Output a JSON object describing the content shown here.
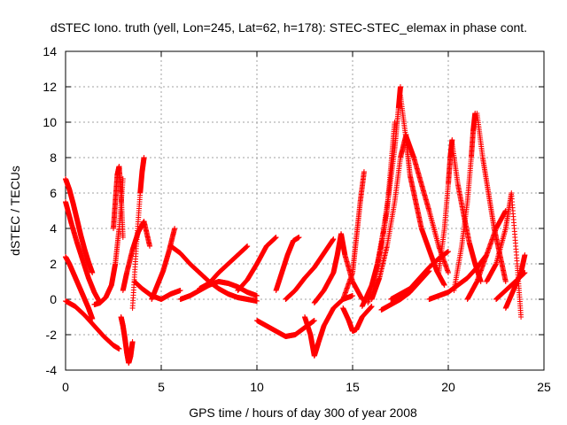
{
  "chart_data": {
    "type": "scatter",
    "title": "dSTEC Iono. truth (yell, Lon=245, Lat=62, h=178): STEC-STEC_elemax in phase cont.",
    "xlabel": "GPS time / hours of day 300 of year 2008",
    "ylabel": "dSTEC  / TECUs",
    "xlim": [
      0,
      25
    ],
    "ylim": [
      -4,
      14
    ],
    "x_ticks": [
      0,
      5,
      10,
      15,
      20,
      25
    ],
    "y_ticks": [
      -4,
      -2,
      0,
      2,
      4,
      6,
      8,
      10,
      12,
      14
    ],
    "grid": true,
    "marker": "+",
    "color": "#ff0000",
    "series": [
      {
        "x": [
          0.0,
          0.2,
          0.4,
          0.6,
          0.8,
          1.0,
          1.2,
          1.4
        ],
        "y": [
          6.8,
          6.2,
          5.4,
          4.5,
          3.6,
          2.8,
          2.1,
          1.5
        ]
      },
      {
        "x": [
          0.0,
          0.3,
          0.6,
          0.9,
          1.2,
          1.5,
          1.8
        ],
        "y": [
          5.5,
          4.3,
          3.2,
          2.2,
          1.2,
          0.4,
          -0.2
        ]
      },
      {
        "x": [
          0.0,
          0.2,
          0.4,
          0.6,
          0.8,
          1.0,
          1.2,
          1.4
        ],
        "y": [
          2.4,
          2.0,
          1.5,
          1.0,
          0.5,
          0.0,
          -0.5,
          -1.1
        ]
      },
      {
        "x": [
          0.0,
          0.5,
          1.0,
          1.5,
          2.0,
          2.5,
          2.8
        ],
        "y": [
          -0.1,
          -0.4,
          -0.9,
          -1.5,
          -2.1,
          -2.6,
          -2.8
        ]
      },
      {
        "x": [
          1.5,
          1.8,
          2.1,
          2.4,
          2.6,
          2.8,
          3.0
        ],
        "y": [
          -0.3,
          -0.2,
          0.1,
          0.8,
          2.0,
          4.0,
          6.8
        ]
      },
      {
        "x": [
          2.5,
          2.6,
          2.7,
          2.8,
          2.9,
          3.0
        ],
        "y": [
          4.0,
          5.5,
          7.0,
          7.5,
          6.0,
          3.5
        ]
      },
      {
        "x": [
          2.9,
          3.0,
          3.1,
          3.2,
          3.3,
          3.4,
          3.5
        ],
        "y": [
          -1.0,
          -1.5,
          -2.2,
          -3.0,
          -3.6,
          -3.2,
          -2.4
        ]
      },
      {
        "x": [
          3.0,
          3.2,
          3.5,
          3.8,
          4.1,
          4.4
        ],
        "y": [
          0.5,
          1.5,
          2.8,
          3.8,
          4.4,
          3.0
        ]
      },
      {
        "x": [
          3.5,
          3.7,
          3.9,
          4.0,
          4.1
        ],
        "y": [
          -0.5,
          3.0,
          6.0,
          7.2,
          8.0
        ]
      },
      {
        "x": [
          3.6,
          4.0,
          4.5,
          5.0,
          5.5,
          6.0
        ],
        "y": [
          1.0,
          0.6,
          0.2,
          0.0,
          0.3,
          0.5
        ]
      },
      {
        "x": [
          4.5,
          4.8,
          5.1,
          5.4,
          5.7
        ],
        "y": [
          0.0,
          0.8,
          1.6,
          2.7,
          4.0
        ]
      },
      {
        "x": [
          5.5,
          6.0,
          6.5,
          7.0,
          7.5,
          8.0,
          8.5,
          9.0,
          9.5,
          10.0
        ],
        "y": [
          3.0,
          2.6,
          2.0,
          1.5,
          1.0,
          0.6,
          0.3,
          0.1,
          0.0,
          -0.1
        ]
      },
      {
        "x": [
          6.0,
          6.5,
          7.0,
          7.5,
          8.0,
          8.5,
          9.0,
          9.5,
          10.0
        ],
        "y": [
          0.0,
          0.2,
          0.5,
          0.8,
          1.0,
          0.9,
          0.7,
          0.4,
          0.2
        ]
      },
      {
        "x": [
          7.0,
          7.5,
          8.0,
          8.5,
          9.0,
          9.5
        ],
        "y": [
          0.6,
          0.9,
          1.5,
          2.0,
          2.5,
          3.0
        ]
      },
      {
        "x": [
          9.0,
          9.5,
          10.0,
          10.5,
          11.0
        ],
        "y": [
          0.5,
          1.1,
          2.0,
          3.0,
          3.5
        ]
      },
      {
        "x": [
          10.0,
          10.5,
          11.0,
          11.5,
          12.0,
          12.5,
          13.0
        ],
        "y": [
          -1.2,
          -1.5,
          -1.8,
          -2.1,
          -2.0,
          -1.6,
          -1.2
        ]
      },
      {
        "x": [
          11.0,
          11.3,
          11.6,
          11.9,
          12.2
        ],
        "y": [
          0.5,
          1.5,
          2.5,
          3.3,
          3.5
        ]
      },
      {
        "x": [
          11.5,
          12.0,
          12.5,
          13.0,
          13.5,
          14.0
        ],
        "y": [
          0.0,
          0.5,
          1.2,
          1.8,
          2.6,
          3.4
        ]
      },
      {
        "x": [
          12.5,
          12.8,
          13.0,
          13.2,
          13.5,
          14.0,
          14.5,
          15.0
        ],
        "y": [
          -1.0,
          -2.0,
          -3.2,
          -2.5,
          -1.5,
          -0.5,
          0.0,
          0.2
        ]
      },
      {
        "x": [
          13.0,
          13.5,
          14.0,
          14.2,
          14.4,
          14.6,
          15.0,
          15.5
        ],
        "y": [
          -0.2,
          0.5,
          1.5,
          2.5,
          3.7,
          2.5,
          1.0,
          0.0
        ]
      },
      {
        "x": [
          14.5,
          14.8,
          15.0,
          15.2,
          15.5,
          16.0
        ],
        "y": [
          -0.5,
          -1.2,
          -1.8,
          -1.7,
          -1.0,
          -0.4
        ]
      },
      {
        "x": [
          14.5,
          15.0,
          15.2,
          15.4,
          15.6
        ],
        "y": [
          0.0,
          1.5,
          3.5,
          5.5,
          7.2
        ]
      },
      {
        "x": [
          15.5,
          16.0,
          16.3,
          16.6,
          16.9,
          17.2,
          17.4,
          17.5
        ],
        "y": [
          -0.4,
          0.8,
          2.0,
          3.8,
          6.0,
          8.5,
          10.8,
          12.0
        ]
      },
      {
        "x": [
          15.8,
          16.2,
          16.5,
          16.8,
          17.0,
          17.2
        ],
        "y": [
          -0.2,
          1.5,
          3.0,
          5.0,
          7.5,
          10.0
        ]
      },
      {
        "x": [
          16.0,
          16.4,
          16.8,
          17.2,
          17.5,
          17.8
        ],
        "y": [
          0.0,
          1.2,
          3.0,
          5.5,
          8.0,
          9.3
        ]
      },
      {
        "x": [
          16.5,
          17.0,
          17.5,
          18.0,
          18.5,
          19.0
        ],
        "y": [
          -0.6,
          -0.3,
          0.0,
          0.4,
          1.0,
          1.6
        ]
      },
      {
        "x": [
          17.5,
          17.8,
          18.0,
          18.3,
          18.6,
          19.0,
          19.4,
          19.8
        ],
        "y": [
          11.5,
          9.0,
          7.0,
          5.5,
          4.0,
          2.8,
          1.6,
          0.8
        ]
      },
      {
        "x": [
          17.8,
          18.2,
          18.6,
          19.0,
          19.5,
          20.0
        ],
        "y": [
          9.2,
          8.0,
          6.5,
          5.0,
          3.0,
          1.5
        ]
      },
      {
        "x": [
          17.0,
          17.5,
          18.0,
          18.5,
          19.0,
          19.5,
          20.0
        ],
        "y": [
          0.0,
          0.3,
          0.6,
          1.2,
          1.8,
          2.3,
          2.7
        ]
      },
      {
        "x": [
          19.0,
          19.5,
          20.0,
          20.5,
          21.0,
          21.5,
          22.0
        ],
        "y": [
          0.0,
          0.2,
          0.4,
          0.8,
          1.2,
          1.8,
          2.5
        ]
      },
      {
        "x": [
          19.5,
          19.8,
          20.0,
          20.1,
          20.2
        ],
        "y": [
          1.5,
          4.0,
          6.5,
          8.0,
          9.0
        ]
      },
      {
        "x": [
          20.2,
          20.5,
          20.8,
          21.1,
          21.4,
          21.7
        ],
        "y": [
          8.8,
          6.5,
          4.8,
          3.2,
          2.0,
          1.0
        ]
      },
      {
        "x": [
          20.3,
          20.7,
          21.0,
          21.2,
          21.3,
          21.4
        ],
        "y": [
          0.5,
          3.0,
          5.5,
          8.0,
          9.5,
          10.5
        ]
      },
      {
        "x": [
          21.5,
          21.8,
          22.1,
          22.4,
          22.7,
          23.0
        ],
        "y": [
          10.5,
          8.0,
          6.0,
          4.0,
          2.5,
          1.0
        ]
      },
      {
        "x": [
          21.0,
          21.5,
          22.0,
          22.5,
          23.0
        ],
        "y": [
          0.0,
          1.0,
          2.5,
          4.0,
          5.0
        ]
      },
      {
        "x": [
          22.5,
          23.0,
          23.5,
          24.0
        ],
        "y": [
          0.0,
          0.5,
          1.0,
          1.5
        ]
      },
      {
        "x": [
          22.0,
          22.5,
          23.0,
          23.3,
          23.6,
          23.8
        ],
        "y": [
          1.0,
          2.0,
          4.0,
          6.0,
          2.0,
          -1.0
        ]
      },
      {
        "x": [
          23.0,
          23.4,
          23.8,
          24.0
        ],
        "y": [
          -0.5,
          0.5,
          1.5,
          2.5
        ]
      }
    ]
  }
}
